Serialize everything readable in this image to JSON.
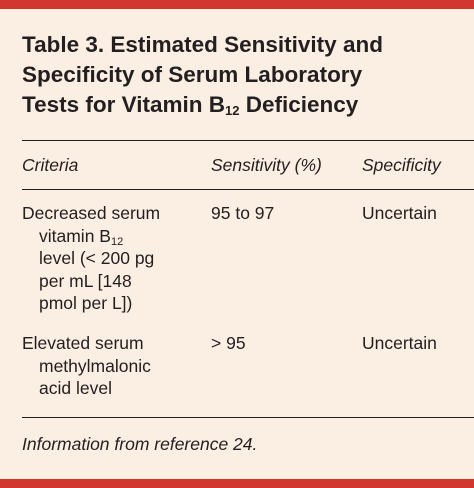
{
  "title": {
    "line1": "Table 3. Estimated Sensitivity and",
    "line2": "Specificity of Serum Laboratory",
    "line3_pre": "Tests for Vitamin B",
    "line3_sub": "12",
    "line3_post": " Deficiency"
  },
  "columns": {
    "criteria": "Criteria",
    "sensitivity": "Sensitivity (%)",
    "specificity": "Specificity"
  },
  "rows": [
    {
      "criteria_l1": "Decreased serum",
      "criteria_l2_pre": "vitamin B",
      "criteria_l2_sub": "12",
      "criteria_l3": "level (< 200 pg",
      "criteria_l4": "per mL [148",
      "criteria_l5": "pmol per L])",
      "sensitivity": "95 to 97",
      "specificity": "Uncertain"
    },
    {
      "criteria_l1": "Elevated serum",
      "criteria_l2": "methylmalonic",
      "criteria_l3": "acid level",
      "sensitivity": "> 95",
      "specificity": "Uncertain"
    }
  ],
  "footnote": "Information from reference 24.",
  "colors": {
    "background": "#fbeee2",
    "accent_bar": "#d1372e",
    "text": "#231f20"
  }
}
